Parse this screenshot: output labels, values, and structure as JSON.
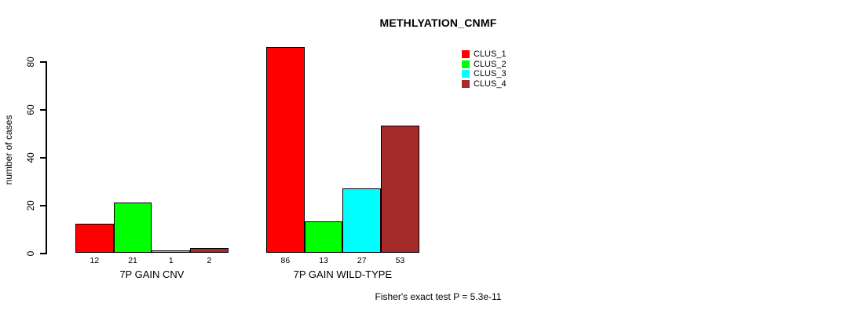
{
  "title": "METHLYATION_CNMF",
  "y_axis": {
    "label": "number of cases",
    "ticks": [
      0,
      20,
      40,
      60,
      80
    ],
    "limit": [
      0,
      80
    ]
  },
  "footer": "Fisher's exact test P = 5.3e-11",
  "legend": {
    "position": "top-right",
    "items": [
      {
        "label": "CLUS_1",
        "color": "#FF0000"
      },
      {
        "label": "CLUS_2",
        "color": "#00FF00"
      },
      {
        "label": "CLUS_3",
        "color": "#00FFFF"
      },
      {
        "label": "CLUS_4",
        "color": "#A52A2A"
      }
    ]
  },
  "chart_data": {
    "type": "bar",
    "title": "METHLYATION_CNMF",
    "xlabel": "",
    "ylabel": "number of cases",
    "ylim": [
      0,
      80
    ],
    "yticks": [
      0,
      20,
      40,
      60,
      80
    ],
    "grid": false,
    "legend_position": "top-right",
    "show_values_under_bars": true,
    "categories": [
      "7P GAIN CNV",
      "7P GAIN WILD-TYPE"
    ],
    "series": [
      {
        "name": "CLUS_1",
        "color": "#FF0000",
        "values": [
          12,
          86
        ]
      },
      {
        "name": "CLUS_2",
        "color": "#00FF00",
        "values": [
          21,
          13
        ]
      },
      {
        "name": "CLUS_3",
        "color": "#00FFFF",
        "values": [
          1,
          27
        ]
      },
      {
        "name": "CLUS_4",
        "color": "#A52A2A",
        "values": [
          2,
          53
        ]
      }
    ],
    "annotation": "Fisher's exact test P = 5.3e-11"
  }
}
